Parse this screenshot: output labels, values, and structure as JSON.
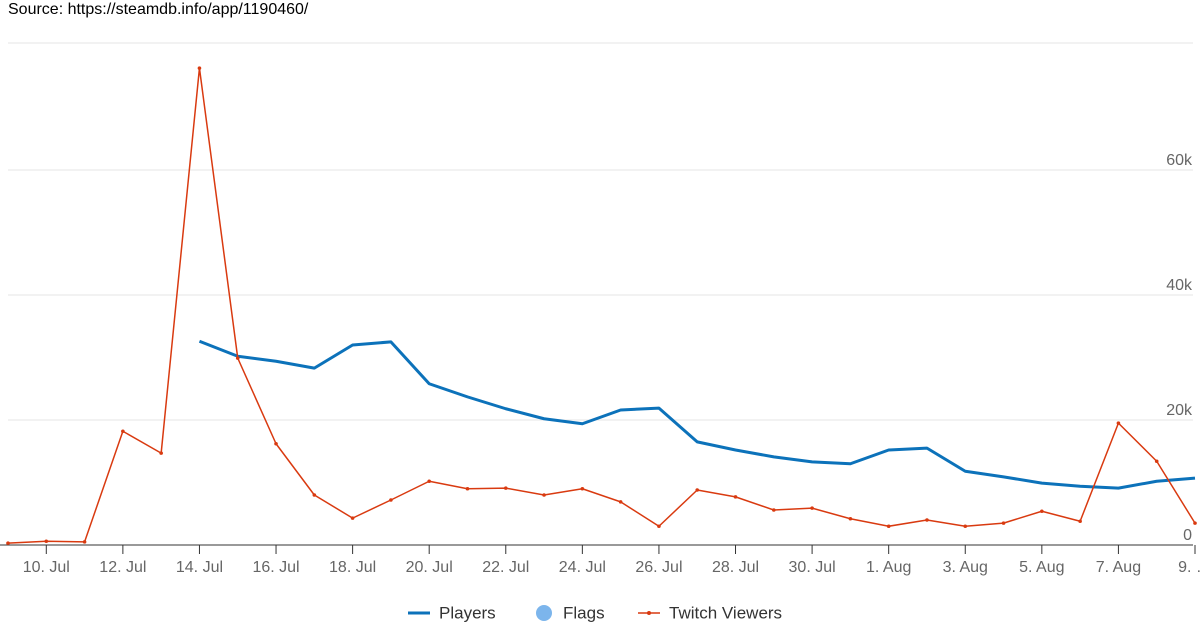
{
  "chart_data": {
    "type": "line",
    "source": "Source: https://steamdb.info/app/1190460/",
    "categories": [
      null,
      "10. Jul",
      null,
      "12. Jul",
      null,
      "14. Jul",
      null,
      "16. Jul",
      null,
      "18. Jul",
      null,
      "20. Jul",
      null,
      "22. Jul",
      null,
      "24. Jul",
      null,
      "26. Jul",
      null,
      "28. Jul",
      null,
      "30. Jul",
      null,
      "1. Aug",
      null,
      "3. Aug",
      null,
      "5. Aug",
      null,
      "7. Aug",
      null,
      "9. …"
    ],
    "series": [
      {
        "name": "Players",
        "color": "#0c72ba",
        "values": [
          null,
          null,
          null,
          null,
          null,
          32600,
          30200,
          29400,
          28300,
          32000,
          32500,
          25800,
          23700,
          21800,
          20200,
          19400,
          21600,
          21900,
          16500,
          15200,
          14100,
          13300,
          13000,
          15200,
          15500,
          11800,
          10900,
          9900,
          9400,
          9100,
          10200,
          10700
        ]
      },
      {
        "name": "Flags",
        "color": "#7cb5ec",
        "values": [
          null,
          null,
          null,
          null,
          null,
          null,
          null,
          null,
          null,
          null,
          null,
          null,
          null,
          null,
          null,
          null,
          null,
          null,
          null,
          null,
          null,
          null,
          null,
          null,
          null,
          null,
          null,
          null,
          null,
          null,
          null,
          null
        ]
      },
      {
        "name": "Twitch Viewers",
        "color": "#d93a10",
        "values": [
          300,
          600,
          500,
          18200,
          14700,
          76300,
          29900,
          16200,
          8000,
          4300,
          7200,
          10200,
          9000,
          9100,
          8000,
          9000,
          6900,
          3000,
          8800,
          7700,
          5600,
          5900,
          4200,
          3000,
          4000,
          3000,
          3500,
          5400,
          3800,
          19500,
          13400,
          3500
        ]
      }
    ],
    "ylim": [
      0,
      80000
    ],
    "yticks": [
      {
        "value": 0,
        "label": "0"
      },
      {
        "value": 20000,
        "label": "20k"
      },
      {
        "value": 40000,
        "label": "40k"
      },
      {
        "value": 60000,
        "label": "60k"
      }
    ],
    "grid": true
  }
}
